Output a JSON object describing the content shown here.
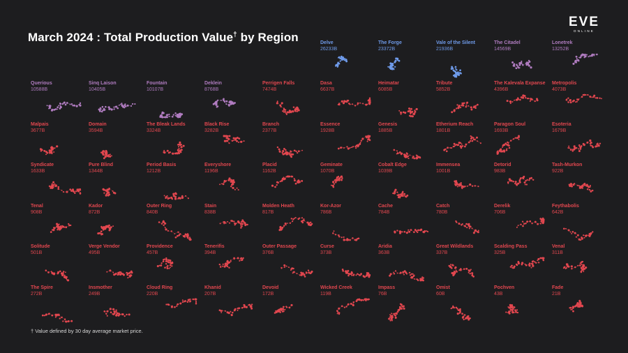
{
  "title": "March 2024 : Total Production Value",
  "title_marker": "†",
  "title_suffix": "by Region",
  "logo": {
    "text": "EVE",
    "subtext": "ONLINE"
  },
  "footnote": "† Value defined by 30 day average market price.",
  "colors": {
    "background": "#1d1d1f",
    "tier_blue": "#6f9bea",
    "tier_purple": "#b07cc0",
    "tier_red": "#e2474f"
  },
  "chart_data": {
    "type": "small-multiples",
    "title": "March 2024 : Total Production Value† by Region",
    "unit": "B",
    "regions": [
      {
        "name": "Delve",
        "value": "26233B",
        "tier": "blue"
      },
      {
        "name": "The Forge",
        "value": "23372B",
        "tier": "blue"
      },
      {
        "name": "Vale of the Silent",
        "value": "21936B",
        "tier": "blue"
      },
      {
        "name": "The Citadel",
        "value": "14569B",
        "tier": "purple"
      },
      {
        "name": "Lonetrek",
        "value": "13252B",
        "tier": "purple"
      },
      {
        "name": "Querious",
        "value": "10588B",
        "tier": "purple"
      },
      {
        "name": "Sinq Laison",
        "value": "10405B",
        "tier": "purple"
      },
      {
        "name": "Fountain",
        "value": "10107B",
        "tier": "purple"
      },
      {
        "name": "Deklein",
        "value": "8768B",
        "tier": "purple"
      },
      {
        "name": "Perrigen Falls",
        "value": "7474B",
        "tier": "red"
      },
      {
        "name": "Dasa",
        "value": "6637B",
        "tier": "red"
      },
      {
        "name": "Heimatar",
        "value": "6085B",
        "tier": "red"
      },
      {
        "name": "Tribute",
        "value": "5852B",
        "tier": "red"
      },
      {
        "name": "The Kalevala Expanse",
        "value": "4396B",
        "tier": "red"
      },
      {
        "name": "Metropolis",
        "value": "4073B",
        "tier": "red"
      },
      {
        "name": "Malpais",
        "value": "3677B",
        "tier": "red"
      },
      {
        "name": "Domain",
        "value": "3594B",
        "tier": "red"
      },
      {
        "name": "The Bleak Lands",
        "value": "3324B",
        "tier": "red"
      },
      {
        "name": "Black Rise",
        "value": "3282B",
        "tier": "red"
      },
      {
        "name": "Branch",
        "value": "2377B",
        "tier": "red"
      },
      {
        "name": "Essence",
        "value": "1928B",
        "tier": "red"
      },
      {
        "name": "Genesis",
        "value": "1885B",
        "tier": "red"
      },
      {
        "name": "Etherium Reach",
        "value": "1801B",
        "tier": "red"
      },
      {
        "name": "Paragon Soul",
        "value": "1693B",
        "tier": "red"
      },
      {
        "name": "Esoteria",
        "value": "1679B",
        "tier": "red"
      },
      {
        "name": "Syndicate",
        "value": "1633B",
        "tier": "red"
      },
      {
        "name": "Pure Blind",
        "value": "1344B",
        "tier": "red"
      },
      {
        "name": "Period Basis",
        "value": "1212B",
        "tier": "red"
      },
      {
        "name": "Everyshore",
        "value": "1196B",
        "tier": "red"
      },
      {
        "name": "Placid",
        "value": "1162B",
        "tier": "red"
      },
      {
        "name": "Geminate",
        "value": "1070B",
        "tier": "red"
      },
      {
        "name": "Cobalt Edge",
        "value": "1039B",
        "tier": "red"
      },
      {
        "name": "Immensea",
        "value": "1001B",
        "tier": "red"
      },
      {
        "name": "Detorid",
        "value": "983B",
        "tier": "red"
      },
      {
        "name": "Tash-Murkon",
        "value": "922B",
        "tier": "red"
      },
      {
        "name": "Tenal",
        "value": "908B",
        "tier": "red"
      },
      {
        "name": "Kador",
        "value": "872B",
        "tier": "red"
      },
      {
        "name": "Outer Ring",
        "value": "840B",
        "tier": "red"
      },
      {
        "name": "Stain",
        "value": "838B",
        "tier": "red"
      },
      {
        "name": "Molden Heath",
        "value": "817B",
        "tier": "red"
      },
      {
        "name": "Kor-Azor",
        "value": "786B",
        "tier": "red"
      },
      {
        "name": "Cache",
        "value": "784B",
        "tier": "red"
      },
      {
        "name": "Catch",
        "value": "780B",
        "tier": "red"
      },
      {
        "name": "Derelik",
        "value": "706B",
        "tier": "red"
      },
      {
        "name": "Feythabolis",
        "value": "642B",
        "tier": "red"
      },
      {
        "name": "Solitude",
        "value": "501B",
        "tier": "red"
      },
      {
        "name": "Verge Vendor",
        "value": "495B",
        "tier": "red"
      },
      {
        "name": "Providence",
        "value": "457B",
        "tier": "red"
      },
      {
        "name": "Tenerifis",
        "value": "394B",
        "tier": "red"
      },
      {
        "name": "Outer Passage",
        "value": "376B",
        "tier": "red"
      },
      {
        "name": "Curse",
        "value": "373B",
        "tier": "red"
      },
      {
        "name": "Aridia",
        "value": "363B",
        "tier": "red"
      },
      {
        "name": "Great Wildlands",
        "value": "337B",
        "tier": "red"
      },
      {
        "name": "Scalding Pass",
        "value": "325B",
        "tier": "red"
      },
      {
        "name": "Venal",
        "value": "311B",
        "tier": "red"
      },
      {
        "name": "The Spire",
        "value": "272B",
        "tier": "red"
      },
      {
        "name": "Insmother",
        "value": "249B",
        "tier": "red"
      },
      {
        "name": "Cloud Ring",
        "value": "220B",
        "tier": "red"
      },
      {
        "name": "Khanid",
        "value": "207B",
        "tier": "red"
      },
      {
        "name": "Devoid",
        "value": "172B",
        "tier": "red"
      },
      {
        "name": "Wicked Creek",
        "value": "119B",
        "tier": "red"
      },
      {
        "name": "Impass",
        "value": "76B",
        "tier": "red"
      },
      {
        "name": "Omist",
        "value": "60B",
        "tier": "red"
      },
      {
        "name": "Pochven",
        "value": "43B",
        "tier": "red"
      },
      {
        "name": "Fade",
        "value": "21B",
        "tier": "red"
      }
    ]
  }
}
